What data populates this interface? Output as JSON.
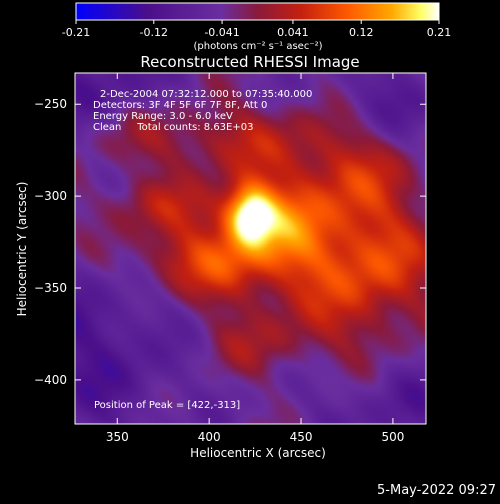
{
  "colorbar": {
    "ticks": [
      "-0.21",
      "-0.12",
      "-0.041",
      "0.041",
      "0.12",
      "0.21"
    ],
    "unit_label": "(photons cm⁻² s⁻¹ asec⁻²)"
  },
  "plot": {
    "title": "Reconstructed RHESSI Image",
    "info": [
      "2-Dec-2004 07:32:12.000 to 07:35:40.000",
      "Detectors: 3F 4F 5F 6F 7F 8F, Att 0",
      "Energy Range: 3.0 - 6.0 keV",
      "Clean     Total counts: 8.63E+03"
    ],
    "peak_text": "Position of Peak = [422,-313]"
  },
  "footer": {
    "date": "5-May-2022 09:27"
  },
  "chart_data": {
    "type": "heatmap",
    "title": "Reconstructed RHESSI Image",
    "xlabel": "Heliocentric X (arcsec)",
    "ylabel": "Heliocentric Y (arcsec)",
    "xlim": [
      327,
      518
    ],
    "ylim": [
      -424,
      -233
    ],
    "xticks": [
      350,
      400,
      450,
      500
    ],
    "yticks": [
      -250,
      -300,
      -350,
      -400
    ],
    "colorbar_range": [
      -0.21,
      0.21
    ],
    "colormap": [
      "#0000ff",
      "#4b0f8a",
      "#6a2ea0",
      "#8a1a3a",
      "#c42010",
      "#ff5a00",
      "#ffa800",
      "#ffff66",
      "#ffffff"
    ],
    "peak": {
      "x": 422,
      "y": -313,
      "value": 0.21
    },
    "blobs": [
      {
        "x": 422,
        "y": -310,
        "sx": 9,
        "sy": 11,
        "v": 0.2
      },
      {
        "x": 437,
        "y": -312,
        "sx": 20,
        "sy": 16,
        "v": 0.08
      },
      {
        "x": 450,
        "y": -335,
        "sx": 45,
        "sy": 20,
        "v": 0.09
      },
      {
        "x": 390,
        "y": -335,
        "sx": 32,
        "sy": 14,
        "v": 0.08
      },
      {
        "x": 370,
        "y": -305,
        "sx": 30,
        "sy": 11,
        "v": 0.06
      },
      {
        "x": 395,
        "y": -268,
        "sx": 42,
        "sy": 14,
        "v": 0.07
      },
      {
        "x": 470,
        "y": -285,
        "sx": 28,
        "sy": 22,
        "v": 0.08
      },
      {
        "x": 490,
        "y": -345,
        "sx": 22,
        "sy": 40,
        "v": 0.07
      },
      {
        "x": 430,
        "y": -380,
        "sx": 32,
        "sy": 14,
        "v": 0.05
      },
      {
        "x": 340,
        "y": -240,
        "sx": 30,
        "sy": 18,
        "v": -0.06
      },
      {
        "x": 340,
        "y": -380,
        "sx": 35,
        "sy": 40,
        "v": -0.07
      },
      {
        "x": 495,
        "y": -250,
        "sx": 25,
        "sy": 18,
        "v": -0.06
      },
      {
        "x": 500,
        "y": -410,
        "sx": 30,
        "sy": 20,
        "v": -0.06
      }
    ]
  }
}
